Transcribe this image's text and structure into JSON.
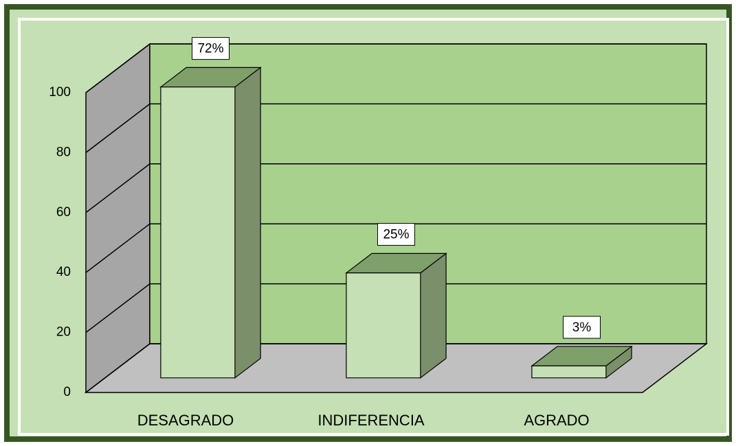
{
  "chart_data": {
    "type": "bar3d",
    "categories": [
      "DESAGRADO",
      "INDIFERENCIA",
      "AGRADO"
    ],
    "values": [
      97,
      35,
      4
    ],
    "labels": [
      "72%",
      "25%",
      "3%"
    ],
    "color": "#c5e0b4",
    "top_color": "#7f9f6b",
    "side_color": "#7a8f6a",
    "ylim": [
      0,
      100
    ],
    "yticks": [
      0,
      20,
      40,
      60,
      80,
      100
    ],
    "grid": true
  }
}
